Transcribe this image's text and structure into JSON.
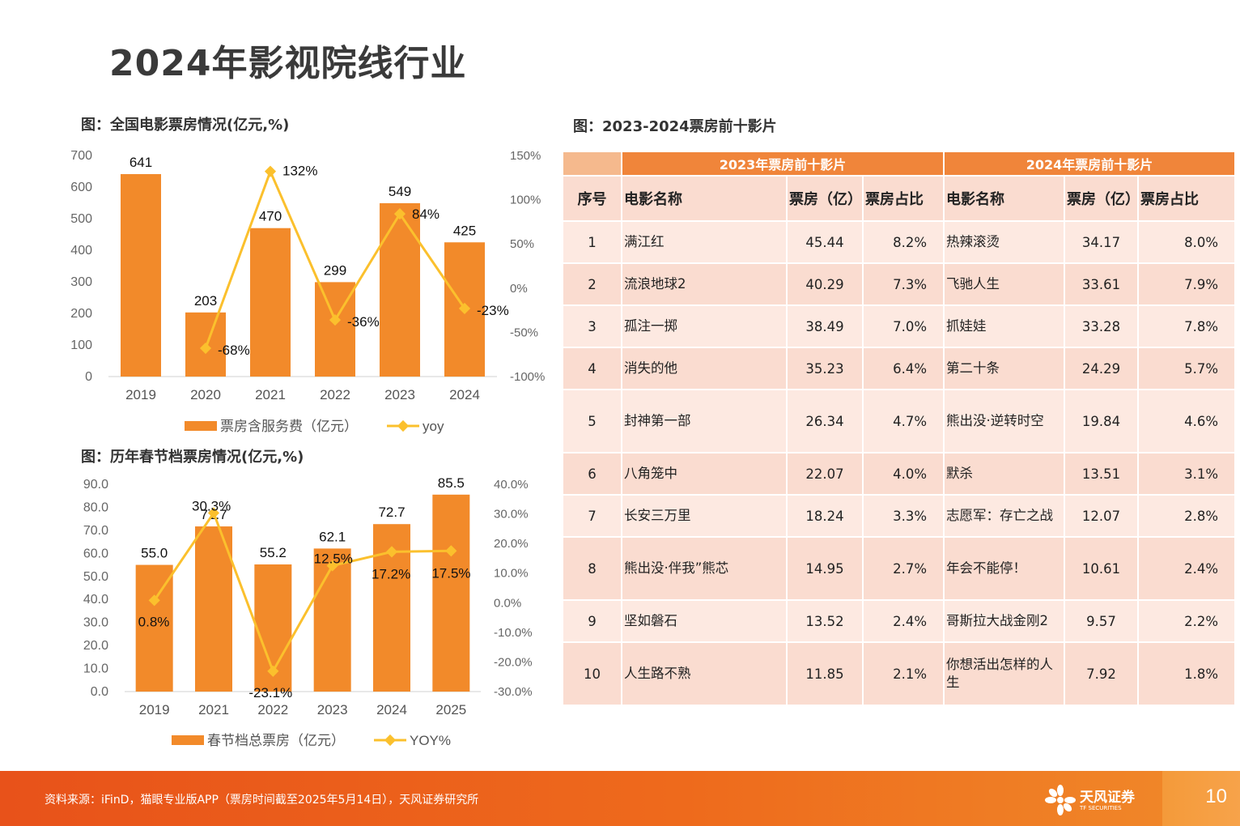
{
  "page": {
    "title": "2024年影视院线行业",
    "page_number": "10"
  },
  "chart1": {
    "caption": "图：全国电影票房情况(亿元,%)"
  },
  "chart2": {
    "caption": "图：历年春节档票房情况(亿元,%)"
  },
  "table": {
    "caption": "图：2023-2024票房前十影片",
    "group_2023": "2023年票房前十影片",
    "group_2024": "2024年票房前十影片",
    "headers": [
      "序号",
      "电影名称",
      "票房（亿）",
      "票房占比",
      "电影名称",
      "票房（亿）",
      "票房占比"
    ],
    "rows": [
      [
        "1",
        "满江红",
        "45.44",
        "8.2%",
        "热辣滚烫",
        "34.17",
        "8.0%"
      ],
      [
        "2",
        "流浪地球2",
        "40.29",
        "7.3%",
        "飞驰人生",
        "33.61",
        "7.9%"
      ],
      [
        "3",
        "孤注一掷",
        "38.49",
        "7.0%",
        "抓娃娃",
        "33.28",
        "7.8%"
      ],
      [
        "4",
        "消失的他",
        "35.23",
        "6.4%",
        "第二十条",
        "24.29",
        "5.7%"
      ],
      [
        "5",
        "封神第一部",
        "26.34",
        "4.7%",
        "熊出没·逆转时空",
        "19.84",
        "4.6%"
      ],
      [
        "6",
        "八角笼中",
        "22.07",
        "4.0%",
        "默杀",
        "13.51",
        "3.1%"
      ],
      [
        "7",
        "长安三万里",
        "18.24",
        "3.3%",
        "志愿军：存亡之战",
        "12.07",
        "2.8%"
      ],
      [
        "8",
        "熊出没·伴我”熊芯",
        "14.95",
        "2.7%",
        "年会不能停！",
        "10.61",
        "2.4%"
      ],
      [
        "9",
        "坚如磐石",
        "13.52",
        "2.4%",
        "哥斯拉大战金刚2",
        "9.57",
        "2.2%"
      ],
      [
        "10",
        "人生路不熟",
        "11.85",
        "2.1%",
        "你想活出怎样的人生",
        "7.92",
        "1.8%"
      ]
    ]
  },
  "footer": {
    "source": "资料来源：iFinD，猫眼专业版APP（票房时间截至2025年5月14日），天风证券研究所",
    "logo_text": "天风证券",
    "logo_sub": "TF SECURITIES"
  },
  "colors": {
    "bar": "#f28a2a",
    "line": "#fbc02d",
    "accent": "#f0853a",
    "footer": "#e8521a"
  },
  "chart_data": [
    {
      "type": "bar",
      "title": "图：全国电影票房情况(亿元,%)",
      "categories": [
        "2019",
        "2020",
        "2021",
        "2022",
        "2023",
        "2024"
      ],
      "series": [
        {
          "name": "票房含服务费（亿元）",
          "type": "bar",
          "axis": "left",
          "values": [
            641,
            203,
            470,
            299,
            549,
            425
          ],
          "labels": [
            "641",
            "203",
            "470",
            "299",
            "549",
            "425"
          ]
        },
        {
          "name": "yoy",
          "type": "line",
          "axis": "right",
          "values": [
            null,
            -68,
            132,
            -36,
            84,
            -23
          ],
          "labels": [
            "",
            "-68%",
            "132%",
            "-36%",
            "84%",
            "-23%"
          ]
        }
      ],
      "ylim": [
        0,
        700
      ],
      "yticks": [
        "0",
        "100",
        "200",
        "300",
        "400",
        "500",
        "600",
        "700"
      ],
      "y2lim": [
        -100,
        150
      ],
      "y2ticks": [
        "-100%",
        "-50%",
        "0%",
        "50%",
        "100%",
        "150%"
      ],
      "legend": "bottom",
      "grid": false
    },
    {
      "type": "bar",
      "title": "图：历年春节档票房情况(亿元,%)",
      "categories": [
        "2019",
        "2021",
        "2022",
        "2023",
        "2024",
        "2025"
      ],
      "series": [
        {
          "name": "春节档总票房（亿元）",
          "type": "bar",
          "axis": "left",
          "values": [
            55.0,
            71.7,
            55.2,
            62.1,
            72.7,
            85.5
          ],
          "labels": [
            "55.0",
            "71.7",
            "55.2",
            "62.1",
            "72.7",
            "85.5"
          ]
        },
        {
          "name": "YOY%",
          "type": "line",
          "axis": "right",
          "values": [
            0.8,
            30.3,
            -23.1,
            12.5,
            17.2,
            17.5
          ],
          "labels": [
            "0.8%",
            "30.3%",
            "-23.1%",
            "12.5%",
            "17.2%",
            "17.5%"
          ]
        }
      ],
      "ylim": [
        0,
        90
      ],
      "yticks": [
        "0.0",
        "10.0",
        "20.0",
        "30.0",
        "40.0",
        "50.0",
        "60.0",
        "70.0",
        "80.0",
        "90.0"
      ],
      "y2lim": [
        -30,
        40
      ],
      "y2ticks": [
        "-30.0%",
        "-20.0%",
        "-10.0%",
        "0.0%",
        "10.0%",
        "20.0%",
        "30.0%",
        "40.0%"
      ],
      "legend": "bottom",
      "grid": false
    }
  ]
}
